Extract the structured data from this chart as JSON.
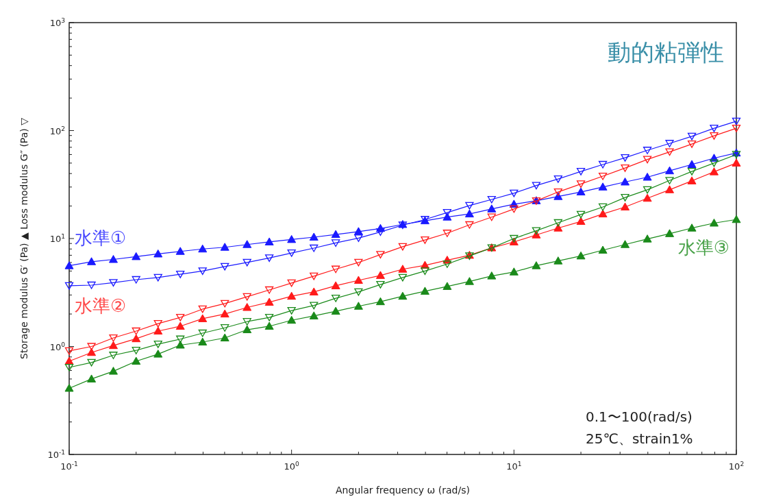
{
  "chart_data": {
    "type": "line",
    "title": "動的粘弾性",
    "xlabel": "Angular frequency ω (rad/s)",
    "ylabel": "Storage modulus G′ (Pa) ▲     Loss modulus G″ (Pa) ▽",
    "log": "xy",
    "grid": false,
    "line_style": "solid",
    "x": [
      0.1,
      0.126,
      0.158,
      0.2,
      0.251,
      0.316,
      0.398,
      0.501,
      0.631,
      0.794,
      1,
      1.26,
      1.58,
      2,
      2.51,
      3.16,
      3.98,
      5.01,
      6.31,
      7.94,
      10,
      12.6,
      15.8,
      20,
      25.1,
      31.6,
      39.8,
      50.1,
      63.1,
      79.4,
      100
    ],
    "xlim": [
      0.1,
      100
    ],
    "ylim": [
      0.1,
      1000
    ],
    "xticks": [
      {
        "value": 0.1,
        "label": "10$^{-1}$"
      },
      {
        "value": 0.2,
        "label": null
      },
      {
        "value": 0.3,
        "label": null
      },
      {
        "value": 0.4,
        "label": null
      },
      {
        "value": 0.5,
        "label": null
      },
      {
        "value": 0.6,
        "label": null
      },
      {
        "value": 0.7,
        "label": null
      },
      {
        "value": 0.8,
        "label": null
      },
      {
        "value": 0.9,
        "label": null
      },
      {
        "value": 1,
        "label": "10$^{0}$"
      },
      {
        "value": 2,
        "label": null
      },
      {
        "value": 3,
        "label": null
      },
      {
        "value": 4,
        "label": null
      },
      {
        "value": 5,
        "label": null
      },
      {
        "value": 6,
        "label": null
      },
      {
        "value": 7,
        "label": null
      },
      {
        "value": 8,
        "label": null
      },
      {
        "value": 9,
        "label": null
      },
      {
        "value": 10,
        "label": "10$^{1}$"
      },
      {
        "value": 20,
        "label": null
      },
      {
        "value": 30,
        "label": null
      },
      {
        "value": 40,
        "label": null
      },
      {
        "value": 50,
        "label": null
      },
      {
        "value": 60,
        "label": null
      },
      {
        "value": 70,
        "label": null
      },
      {
        "value": 80,
        "label": null
      },
      {
        "value": 90,
        "label": null
      },
      {
        "value": 100,
        "label": "10$^{2}$"
      }
    ],
    "yticks": [
      {
        "value": 0.1,
        "label": "10$^{-1}$"
      },
      {
        "value": 0.2,
        "label": null
      },
      {
        "value": 0.3,
        "label": null
      },
      {
        "value": 0.4,
        "label": null
      },
      {
        "value": 0.5,
        "label": null
      },
      {
        "value": 0.6,
        "label": null
      },
      {
        "value": 0.7,
        "label": null
      },
      {
        "value": 0.8,
        "label": null
      },
      {
        "value": 0.9,
        "label": null
      },
      {
        "value": 1,
        "label": "10$^{0}$"
      },
      {
        "value": 2,
        "label": null
      },
      {
        "value": 3,
        "label": null
      },
      {
        "value": 4,
        "label": null
      },
      {
        "value": 5,
        "label": null
      },
      {
        "value": 6,
        "label": null
      },
      {
        "value": 7,
        "label": null
      },
      {
        "value": 8,
        "label": null
      },
      {
        "value": 9,
        "label": null
      },
      {
        "value": 10,
        "label": "10$^{1}$"
      },
      {
        "value": 20,
        "label": null
      },
      {
        "value": 30,
        "label": null
      },
      {
        "value": 40,
        "label": null
      },
      {
        "value": 50,
        "label": null
      },
      {
        "value": 60,
        "label": null
      },
      {
        "value": 70,
        "label": null
      },
      {
        "value": 80,
        "label": null
      },
      {
        "value": 90,
        "label": null
      },
      {
        "value": 100,
        "label": "10$^{2}$"
      },
      {
        "value": 200,
        "label": null
      },
      {
        "value": 300,
        "label": null
      },
      {
        "value": 400,
        "label": null
      },
      {
        "value": 500,
        "label": null
      },
      {
        "value": 600,
        "label": null
      },
      {
        "value": 700,
        "label": null
      },
      {
        "value": 800,
        "label": null
      },
      {
        "value": 900,
        "label": null
      },
      {
        "value": 1000,
        "label": "10$^{3}$"
      }
    ],
    "series": [
      {
        "name": "水準①",
        "color": "#1a1aff",
        "marker": "triangle",
        "values": [
          5.6,
          6.1,
          6.4,
          6.8,
          7.2,
          7.6,
          8.0,
          8.3,
          8.8,
          9.3,
          9.8,
          10.3,
          10.9,
          11.6,
          12.4,
          13.5,
          14.6,
          15.8,
          16.9,
          18.8,
          20.8,
          22.4,
          24.5,
          27,
          30,
          33.4,
          37,
          42.4,
          48.5,
          55.5,
          62
        ]
      },
      {
        "color": "#1a1aff",
        "marker": "triangle-down",
        "values": [
          3.65,
          3.7,
          3.9,
          4.16,
          4.35,
          4.67,
          5.0,
          5.5,
          6.0,
          6.6,
          7.35,
          8.15,
          9.1,
          10.1,
          11.5,
          13.3,
          15.0,
          17.4,
          20.2,
          23,
          26.3,
          31,
          35.6,
          41.8,
          48.5,
          56,
          65.7,
          76,
          88.5,
          105,
          122
        ]
      },
      {
        "name": "水準②",
        "color": "#ff1a1a",
        "marker": "triangle",
        "values": [
          0.73,
          0.88,
          1.02,
          1.18,
          1.39,
          1.54,
          1.81,
          2.0,
          2.3,
          2.57,
          2.92,
          3.2,
          3.65,
          4.1,
          4.55,
          5.2,
          5.65,
          6.3,
          7.0,
          8.2,
          9.3,
          10.8,
          12.5,
          14.4,
          16.9,
          19.6,
          23.6,
          28.3,
          34.2,
          41.5,
          50
        ]
      },
      {
        "color": "#ff1a1a",
        "marker": "triangle-down",
        "values": [
          0.91,
          1.0,
          1.2,
          1.39,
          1.63,
          1.86,
          2.22,
          2.5,
          2.89,
          3.34,
          3.87,
          4.48,
          5.2,
          6.0,
          7.1,
          8.4,
          9.7,
          11.2,
          13.4,
          15.8,
          18.8,
          22.3,
          27,
          32,
          37.8,
          45,
          54,
          63.5,
          75,
          89.5,
          105
        ]
      },
      {
        "name": "水準③",
        "color": "#1a8a1a",
        "marker": "triangle",
        "values": [
          0.41,
          0.5,
          0.59,
          0.73,
          0.85,
          1.03,
          1.1,
          1.2,
          1.43,
          1.54,
          1.75,
          1.92,
          2.12,
          2.36,
          2.6,
          2.92,
          3.25,
          3.6,
          4.0,
          4.5,
          4.9,
          5.6,
          6.2,
          6.9,
          7.8,
          8.8,
          9.9,
          11.1,
          12.5,
          13.9,
          15
        ]
      },
      {
        "color": "#1a8a1a",
        "marker": "triangle-down",
        "values": [
          0.64,
          0.71,
          0.83,
          0.92,
          1.05,
          1.17,
          1.33,
          1.49,
          1.7,
          1.86,
          2.15,
          2.4,
          2.8,
          3.2,
          3.75,
          4.35,
          5.0,
          5.8,
          6.9,
          8.2,
          10.0,
          11.8,
          14,
          16.7,
          19.6,
          24,
          28.3,
          34.5,
          41.8,
          50,
          60
        ]
      }
    ],
    "annotations": [
      "0.1〜100(rad/s)",
      "25℃、strain1%"
    ]
  }
}
